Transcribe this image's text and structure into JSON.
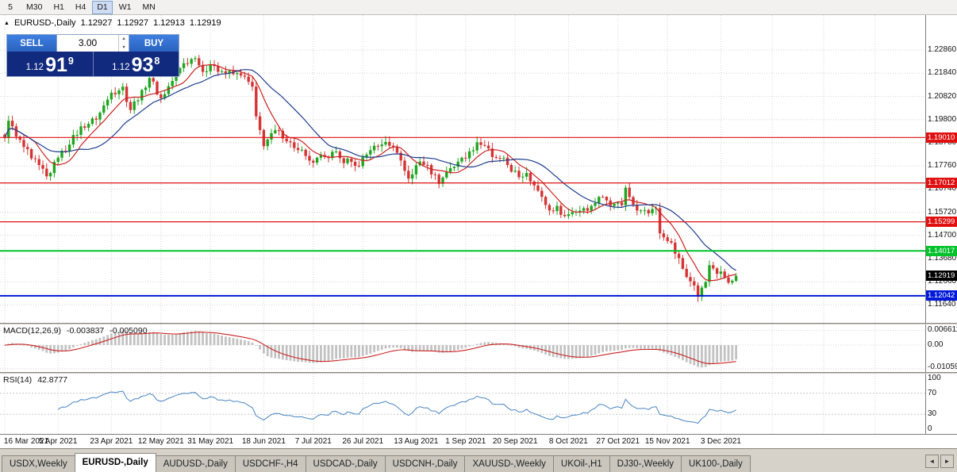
{
  "toolbar": {
    "timeframes": [
      {
        "label": "5",
        "active": false
      },
      {
        "label": "M30",
        "active": false
      },
      {
        "label": "H1",
        "active": false
      },
      {
        "label": "H4",
        "active": false
      },
      {
        "label": "D1",
        "active": true
      },
      {
        "label": "W1",
        "active": false
      },
      {
        "label": "MN",
        "active": false
      }
    ]
  },
  "header": {
    "collapse_icon": "▲",
    "symbol": "EURUSD-,Daily",
    "open": "1.12927",
    "high": "1.12927",
    "low": "1.12913",
    "close": "1.12919"
  },
  "trade_panel": {
    "sell_label": "SELL",
    "buy_label": "BUY",
    "volume": "3.00",
    "spin_up": "▲",
    "spin_down": "▼",
    "sell_price": {
      "prefix": "1.12",
      "pips": "91",
      "point": "9"
    },
    "buy_price": {
      "prefix": "1.12",
      "pips": "93",
      "point": "8"
    }
  },
  "price_axis": {
    "labels": [
      "1.22860",
      "1.21840",
      "1.20820",
      "1.19800",
      "1.18780",
      "1.17760",
      "1.16740",
      "1.15720",
      "1.14700",
      "1.13680",
      "1.12660",
      "1.11640"
    ],
    "prices": [
      1.2286,
      1.2184,
      1.2082,
      1.198,
      1.1878,
      1.1776,
      1.1674,
      1.1572,
      1.147,
      1.1368,
      1.1266,
      1.1164
    ]
  },
  "hlines": [
    {
      "label": "1.19010",
      "price": 1.1901,
      "color": "#e01010",
      "width": 1.2
    },
    {
      "label": "1.17012",
      "price": 1.17012,
      "color": "#e01010",
      "width": 1.2
    },
    {
      "label": "1.15299",
      "price": 1.15299,
      "color": "#e01010",
      "width": 1.2
    },
    {
      "label": "1.14017",
      "price": 1.14017,
      "color": "#00c22a",
      "width": 2
    },
    {
      "label": "1.12042",
      "price": 1.12042,
      "color": "#0018d8",
      "width": 2
    }
  ],
  "current_price": {
    "label": "1.12919",
    "price": 1.12919,
    "color": "#000000"
  },
  "chart_data": {
    "type": "candlestick",
    "symbol": "EURUSD",
    "timeframe": "Daily",
    "bar_count": 193,
    "bull_color": "#1fa51f",
    "bear_color": "#d43434",
    "price_range": {
      "top": 1.244,
      "bottom": 1.1085
    },
    "moving_averages": [
      {
        "period": 8,
        "color": "#cc2222"
      },
      {
        "period": 20,
        "color": "#1d3d8f"
      }
    ],
    "anchors": [
      [
        0,
        1.1899
      ],
      [
        1,
        1.1975
      ],
      [
        3,
        1.1905
      ],
      [
        7,
        1.1809
      ],
      [
        9,
        1.178
      ],
      [
        11,
        1.173
      ],
      [
        12,
        1.1745
      ],
      [
        14,
        1.1812
      ],
      [
        17,
        1.187
      ],
      [
        20,
        1.195
      ],
      [
        24,
        1.198
      ],
      [
        28,
        1.2098
      ],
      [
        31,
        1.2125
      ],
      [
        33,
        1.2022
      ],
      [
        36,
        1.211
      ],
      [
        38,
        1.2163
      ],
      [
        41,
        1.2074
      ],
      [
        44,
        1.215
      ],
      [
        47,
        1.2228
      ],
      [
        50,
        1.225
      ],
      [
        52,
        1.219
      ],
      [
        55,
        1.2216
      ],
      [
        58,
        1.2184
      ],
      [
        62,
        1.2174
      ],
      [
        65,
        1.2125
      ],
      [
        66,
        1.1994
      ],
      [
        68,
        1.1863
      ],
      [
        70,
        1.192
      ],
      [
        72,
        1.193
      ],
      [
        75,
        1.188
      ],
      [
        77,
        1.1846
      ],
      [
        79,
        1.182
      ],
      [
        81,
        1.179
      ],
      [
        84,
        1.1815
      ],
      [
        86,
        1.1838
      ],
      [
        88,
        1.181
      ],
      [
        91,
        1.1794
      ],
      [
        93,
        1.1775
      ],
      [
        96,
        1.1845
      ],
      [
        99,
        1.187
      ],
      [
        101,
        1.1865
      ],
      [
        103,
        1.1834
      ],
      [
        106,
        1.172
      ],
      [
        109,
        1.1795
      ],
      [
        111,
        1.178
      ],
      [
        114,
        1.1697
      ],
      [
        116,
        1.175
      ],
      [
        119,
        1.1795
      ],
      [
        121,
        1.1809
      ],
      [
        122,
        1.184
      ],
      [
        124,
        1.188
      ],
      [
        126,
        1.1865
      ],
      [
        128,
        1.1815
      ],
      [
        130,
        1.181
      ],
      [
        132,
        1.178
      ],
      [
        135,
        1.1726
      ],
      [
        137,
        1.1745
      ],
      [
        139,
        1.169
      ],
      [
        141,
        1.164
      ],
      [
        143,
        1.158
      ],
      [
        145,
        1.16
      ],
      [
        147,
        1.1555
      ],
      [
        149,
        1.1573
      ],
      [
        152,
        1.159
      ],
      [
        154,
        1.16
      ],
      [
        156,
        1.164
      ],
      [
        158,
        1.1624
      ],
      [
        160,
        1.161
      ],
      [
        162,
        1.1603
      ],
      [
        163,
        1.168
      ],
      [
        165,
        1.1605
      ],
      [
        167,
        1.158
      ],
      [
        169,
        1.1567
      ],
      [
        171,
        1.159
      ],
      [
        172,
        1.1479
      ],
      [
        174,
        1.1445
      ],
      [
        175,
        1.1438
      ],
      [
        177,
        1.137
      ],
      [
        179,
        1.1287
      ],
      [
        181,
        1.125
      ],
      [
        182,
        1.12
      ],
      [
        183,
        1.124
      ],
      [
        184,
        1.1265
      ],
      [
        185,
        1.1339
      ],
      [
        186,
        1.1325
      ],
      [
        187,
        1.1301
      ],
      [
        188,
        1.1311
      ],
      [
        189,
        1.1285
      ],
      [
        190,
        1.1262
      ],
      [
        191,
        1.127
      ],
      [
        192,
        1.12919
      ]
    ],
    "date_labels": [
      {
        "label": "16 Mar 2021",
        "bar": 0
      },
      {
        "label": "5 Apr 2021",
        "bar": 14
      },
      {
        "label": "23 Apr 2021",
        "bar": 28
      },
      {
        "label": "12 May 2021",
        "bar": 41
      },
      {
        "label": "31 May 2021",
        "bar": 54
      },
      {
        "label": "18 Jun 2021",
        "bar": 68
      },
      {
        "label": "7 Jul 2021",
        "bar": 81
      },
      {
        "label": "26 Jul 2021",
        "bar": 94
      },
      {
        "label": "13 Aug 2021",
        "bar": 108
      },
      {
        "label": "1 Sep 2021",
        "bar": 121
      },
      {
        "label": "20 Sep 2021",
        "bar": 134
      },
      {
        "label": "8 Oct 2021",
        "bar": 148
      },
      {
        "label": "27 Oct 2021",
        "bar": 161
      },
      {
        "label": "15 Nov 2021",
        "bar": 174
      },
      {
        "label": "3 Dec 2021",
        "bar": 188
      }
    ]
  },
  "macd": {
    "title": "MACD(12,26,9)",
    "value": "-0.003837",
    "signal_value": "-0.005090",
    "params": {
      "fast": 12,
      "slow": 26,
      "signal": 9
    },
    "histogram_color": "#c2c2c2",
    "signal_color": "#cc2222",
    "axis_labels": [
      {
        "label": "0.006611",
        "value": 0.006611
      },
      {
        "label": "0.00",
        "value": 0
      },
      {
        "label": "-0.010590",
        "value": -0.01059
      }
    ]
  },
  "rsi": {
    "title": "RSI(14)",
    "value": "42.8777",
    "period": 14,
    "line_color": "#4884c4",
    "levels": [
      {
        "label": "100",
        "value": 100
      },
      {
        "label": "70",
        "value": 70
      },
      {
        "label": "30",
        "value": 30
      },
      {
        "label": "0",
        "value": 0
      }
    ]
  },
  "tabs": {
    "scroll_left": "◄",
    "scroll_right": "►",
    "items": [
      {
        "label": "USDX,Weekly",
        "active": false
      },
      {
        "label": "EURUSD-,Daily",
        "active": true
      },
      {
        "label": "AUDUSD-,Daily",
        "active": false
      },
      {
        "label": "USDCHF-,H4",
        "active": false
      },
      {
        "label": "USDCAD-,Daily",
        "active": false
      },
      {
        "label": "USDCNH-,Daily",
        "active": false
      },
      {
        "label": "XAUUSD-,Weekly",
        "active": false
      },
      {
        "label": "UKOil-,H1",
        "active": false
      },
      {
        "label": "DJ30-,Weekly",
        "active": false
      },
      {
        "label": "UK100-,Daily",
        "active": false
      }
    ]
  }
}
